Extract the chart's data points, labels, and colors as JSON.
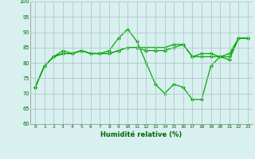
{
  "xlabel": "Humidité relative (%)",
  "bg_color": "#d8f0f0",
  "grid_color": "#b0c8c8",
  "line_color": "#00aa00",
  "ylim": [
    60,
    100
  ],
  "xlim": [
    -0.5,
    23.5
  ],
  "yticks": [
    60,
    65,
    70,
    75,
    80,
    85,
    90,
    95,
    100
  ],
  "xticks": [
    0,
    1,
    2,
    3,
    4,
    5,
    6,
    7,
    8,
    9,
    10,
    11,
    12,
    13,
    14,
    15,
    16,
    17,
    18,
    19,
    20,
    21,
    22,
    23
  ],
  "line1": [
    72,
    79,
    82,
    84,
    83,
    84,
    83,
    83,
    84,
    88,
    91,
    87,
    80,
    73,
    70,
    73,
    72,
    68,
    68,
    79,
    82,
    81,
    88,
    88
  ],
  "line2": [
    72,
    79,
    82,
    83,
    83,
    84,
    83,
    83,
    83,
    84,
    85,
    85,
    85,
    85,
    85,
    86,
    86,
    82,
    83,
    83,
    82,
    83,
    88,
    88
  ],
  "line3": [
    72,
    79,
    82,
    83,
    83,
    84,
    83,
    83,
    83,
    84,
    85,
    85,
    84,
    84,
    84,
    85,
    86,
    82,
    82,
    82,
    82,
    82,
    88,
    88
  ]
}
